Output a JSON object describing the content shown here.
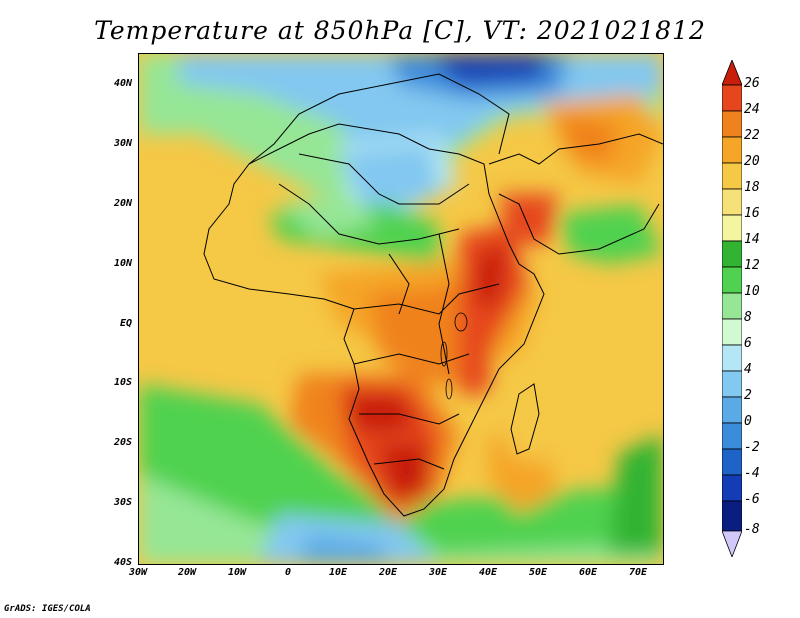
{
  "title": "Temperature at 850hPa [C], VT: 2021021812",
  "y_ticks": [
    "40N",
    "30N",
    "20N",
    "10N",
    "EQ",
    "10S",
    "20S",
    "30S",
    "40S"
  ],
  "x_ticks": [
    "30W",
    "20W",
    "10W",
    "0",
    "10E",
    "20E",
    "30E",
    "40E",
    "50E",
    "60E",
    "70E"
  ],
  "colorbar": {
    "labels": [
      "26",
      "24",
      "22",
      "20",
      "18",
      "16",
      "14",
      "12",
      "10",
      "8",
      "6",
      "4",
      "2",
      "0",
      "-2",
      "-4",
      "-6",
      "-8"
    ],
    "colors": [
      "#c81e0a",
      "#e6461e",
      "#f0821e",
      "#f5a528",
      "#f5c846",
      "#f5e178",
      "#f5f5a0",
      "#32b432",
      "#50d250",
      "#96e696",
      "#d2fad2",
      "#b4e6f5",
      "#82c8f0",
      "#5aaae6",
      "#3c8cdc",
      "#1e64c8",
      "#143cb4",
      "#0a1e82",
      "#d2c8fa"
    ]
  },
  "footer": "GrADS: IGES/COLA"
}
